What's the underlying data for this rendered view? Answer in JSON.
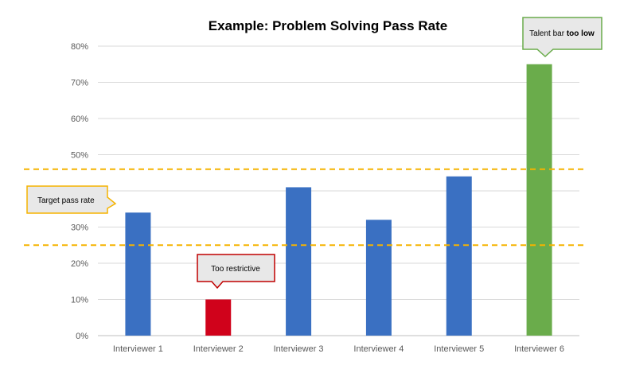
{
  "chart_data": {
    "type": "bar",
    "title": "Example: Problem Solving Pass Rate",
    "xlabel": "",
    "ylabel": "",
    "categories": [
      "Interviewer 1",
      "Interviewer 2",
      "Interviewer 3",
      "Interviewer 4",
      "Interviewer 5",
      "Interviewer 6"
    ],
    "values": [
      0.34,
      0.1,
      0.41,
      0.32,
      0.44,
      0.75
    ],
    "bar_colors": [
      "#3a70c2",
      "#d0021b",
      "#3a70c2",
      "#3a70c2",
      "#3a70c2",
      "#6aac4b"
    ],
    "ylim": [
      0,
      0.8
    ],
    "yticks": [
      0,
      0.1,
      0.2,
      0.3,
      0.4,
      0.5,
      0.6,
      0.7,
      0.8
    ],
    "ytick_labels": [
      "0%",
      "10%",
      "20%",
      "30%",
      "40%",
      "50%",
      "60%",
      "70%",
      "80%"
    ],
    "grid": true,
    "target_band": {
      "lower": 0.25,
      "upper": 0.46,
      "color": "#f5b300"
    },
    "annotations": {
      "target": {
        "text": "Target pass rate",
        "border_color": "#f5b300"
      },
      "restrictive": {
        "text": "Too restrictive",
        "border_color": "#c00000"
      },
      "talent": {
        "text_normal": "Talent bar ",
        "text_bold": "too low",
        "border_color": "#6aac4b"
      }
    }
  }
}
